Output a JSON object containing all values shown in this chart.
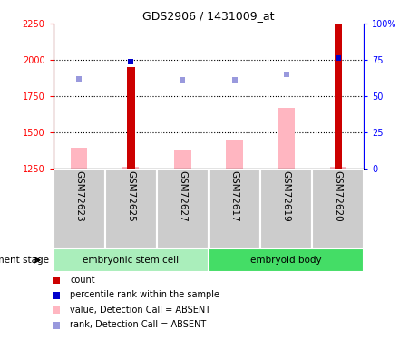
{
  "title": "GDS2906 / 1431009_at",
  "samples": [
    "GSM72623",
    "GSM72625",
    "GSM72627",
    "GSM72617",
    "GSM72619",
    "GSM72620"
  ],
  "group1_label": "embryonic stem cell",
  "group2_label": "embryoid body",
  "group1_color": "#aaeebb",
  "group2_color": "#44dd66",
  "ylim_left": [
    1250,
    2250
  ],
  "ylim_right": [
    0,
    100
  ],
  "yticks_left": [
    1250,
    1500,
    1750,
    2000,
    2250
  ],
  "yticks_right": [
    0,
    25,
    50,
    75,
    100
  ],
  "ytick_labels_right": [
    "0",
    "25",
    "50",
    "75",
    "100%"
  ],
  "hlines": [
    1500,
    1750,
    2000
  ],
  "red_bars": [
    null,
    1950,
    null,
    null,
    null,
    2250
  ],
  "pink_bars": [
    1390,
    1258,
    1380,
    1450,
    1670,
    1258
  ],
  "rank_absent_squares": [
    1870,
    null,
    1865,
    1865,
    1900,
    null
  ],
  "percentile_rank_squares": [
    null,
    1990,
    null,
    null,
    null,
    2010
  ],
  "bar_bottom": 1250,
  "red_color": "#cc0000",
  "pink_color": "#ffb6c1",
  "blue_light_color": "#9999dd",
  "blue_dark_color": "#0000cc",
  "label_bg_color": "#cccccc",
  "development_stage_label": "development stage",
  "legend_items": [
    {
      "color": "#cc0000",
      "label": "count"
    },
    {
      "color": "#0000cc",
      "label": "percentile rank within the sample"
    },
    {
      "color": "#ffb6c1",
      "label": "value, Detection Call = ABSENT"
    },
    {
      "color": "#9999dd",
      "label": "rank, Detection Call = ABSENT"
    }
  ]
}
